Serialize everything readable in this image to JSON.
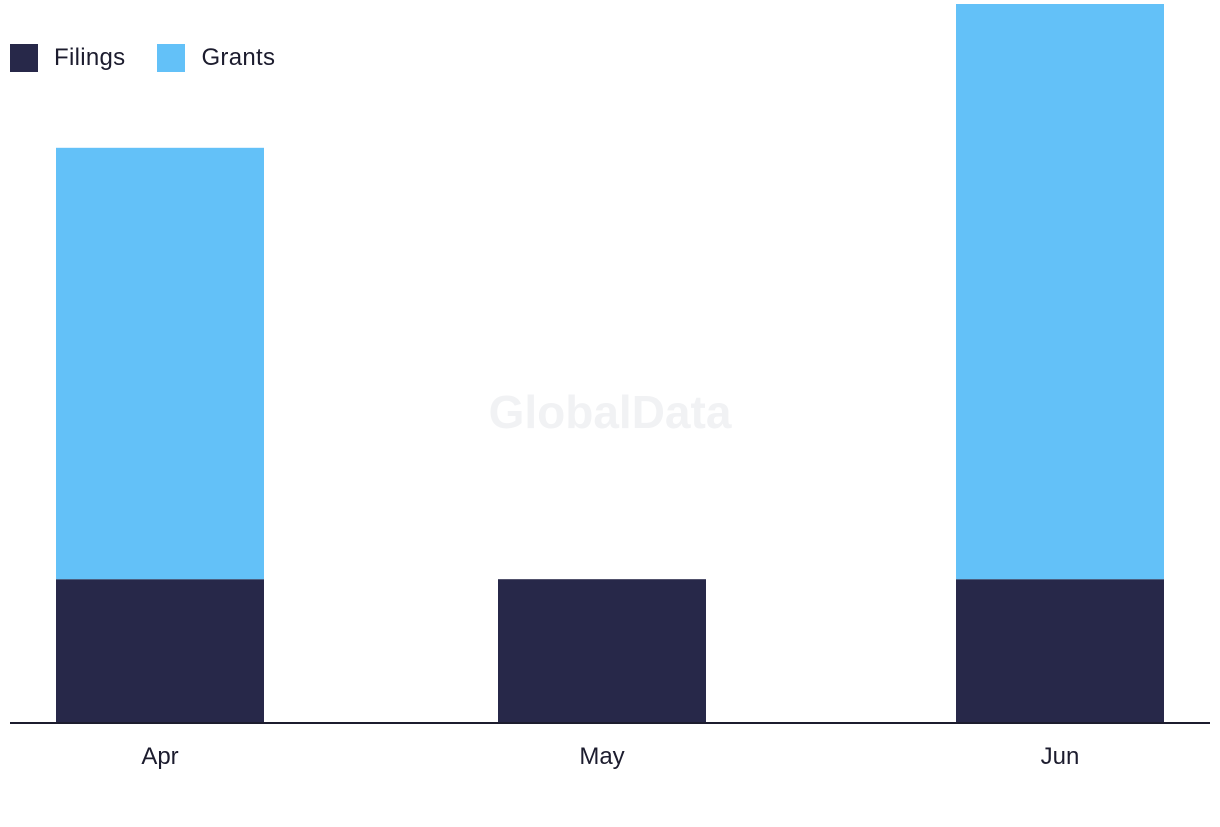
{
  "watermark": "GlobalData",
  "colors": {
    "filings": "#272849",
    "grants": "#63c1f8",
    "axis": "#1c1c2e"
  },
  "chart_data": {
    "type": "bar",
    "stacked": true,
    "categories": [
      "Apr",
      "May",
      "Jun"
    ],
    "series": [
      {
        "name": "Filings",
        "values": [
          1,
          1,
          1
        ],
        "color": "#272849"
      },
      {
        "name": "Grants",
        "values": [
          3,
          0,
          4
        ],
        "color": "#63c1f8"
      }
    ],
    "ylim": [
      0,
      5
    ],
    "grid": false,
    "legend": "top-left",
    "title": "",
    "xlabel": "",
    "ylabel": ""
  }
}
